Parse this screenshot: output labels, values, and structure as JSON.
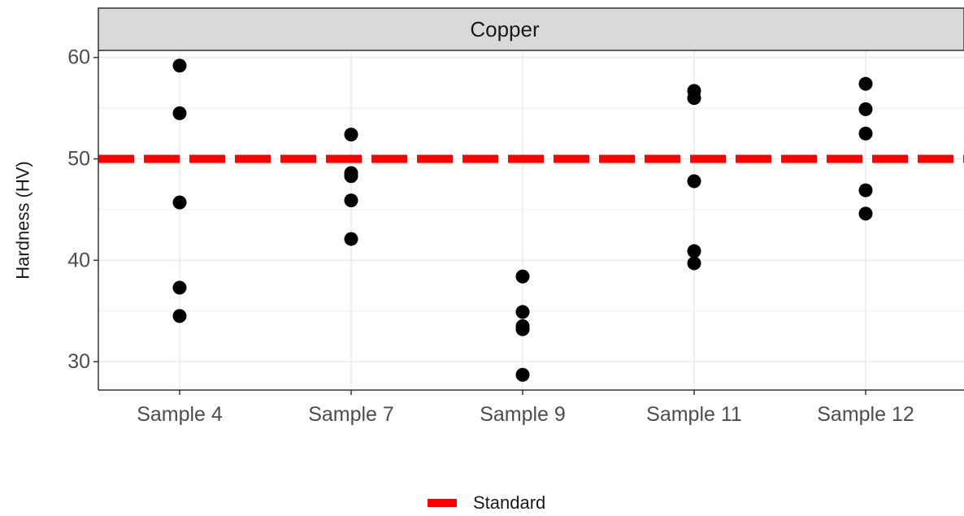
{
  "chart_data": {
    "type": "scatter",
    "facet_title": "Copper",
    "ylabel": "Hardness (HV)",
    "xlabel": "",
    "categories": [
      "Sample 4",
      "Sample 7",
      "Sample 9",
      "Sample 11",
      "Sample 12"
    ],
    "points": [
      {
        "x": "Sample 4",
        "y": 59.2
      },
      {
        "x": "Sample 4",
        "y": 54.5
      },
      {
        "x": "Sample 4",
        "y": 45.7
      },
      {
        "x": "Sample 4",
        "y": 37.3
      },
      {
        "x": "Sample 4",
        "y": 34.5
      },
      {
        "x": "Sample 7",
        "y": 52.4
      },
      {
        "x": "Sample 7",
        "y": 48.6
      },
      {
        "x": "Sample 7",
        "y": 48.3
      },
      {
        "x": "Sample 7",
        "y": 45.9
      },
      {
        "x": "Sample 7",
        "y": 42.1
      },
      {
        "x": "Sample 9",
        "y": 38.4
      },
      {
        "x": "Sample 9",
        "y": 34.9
      },
      {
        "x": "Sample 9",
        "y": 33.5
      },
      {
        "x": "Sample 9",
        "y": 33.2
      },
      {
        "x": "Sample 9",
        "y": 28.7
      },
      {
        "x": "Sample 11",
        "y": 56.7
      },
      {
        "x": "Sample 11",
        "y": 56.0
      },
      {
        "x": "Sample 11",
        "y": 47.8
      },
      {
        "x": "Sample 11",
        "y": 40.9
      },
      {
        "x": "Sample 11",
        "y": 39.7
      },
      {
        "x": "Sample 12",
        "y": 57.4
      },
      {
        "x": "Sample 12",
        "y": 54.9
      },
      {
        "x": "Sample 12",
        "y": 52.5
      },
      {
        "x": "Sample 12",
        "y": 46.9
      },
      {
        "x": "Sample 12",
        "y": 44.6
      }
    ],
    "reference_line": {
      "name": "Standard",
      "y": 50,
      "color": "#ff0000",
      "style": "dashed"
    },
    "yticks": [
      30,
      40,
      50,
      60
    ],
    "ylim": [
      27.2,
      60.7
    ],
    "grid": true,
    "legend_position": "bottom",
    "point_color": "#000000"
  }
}
